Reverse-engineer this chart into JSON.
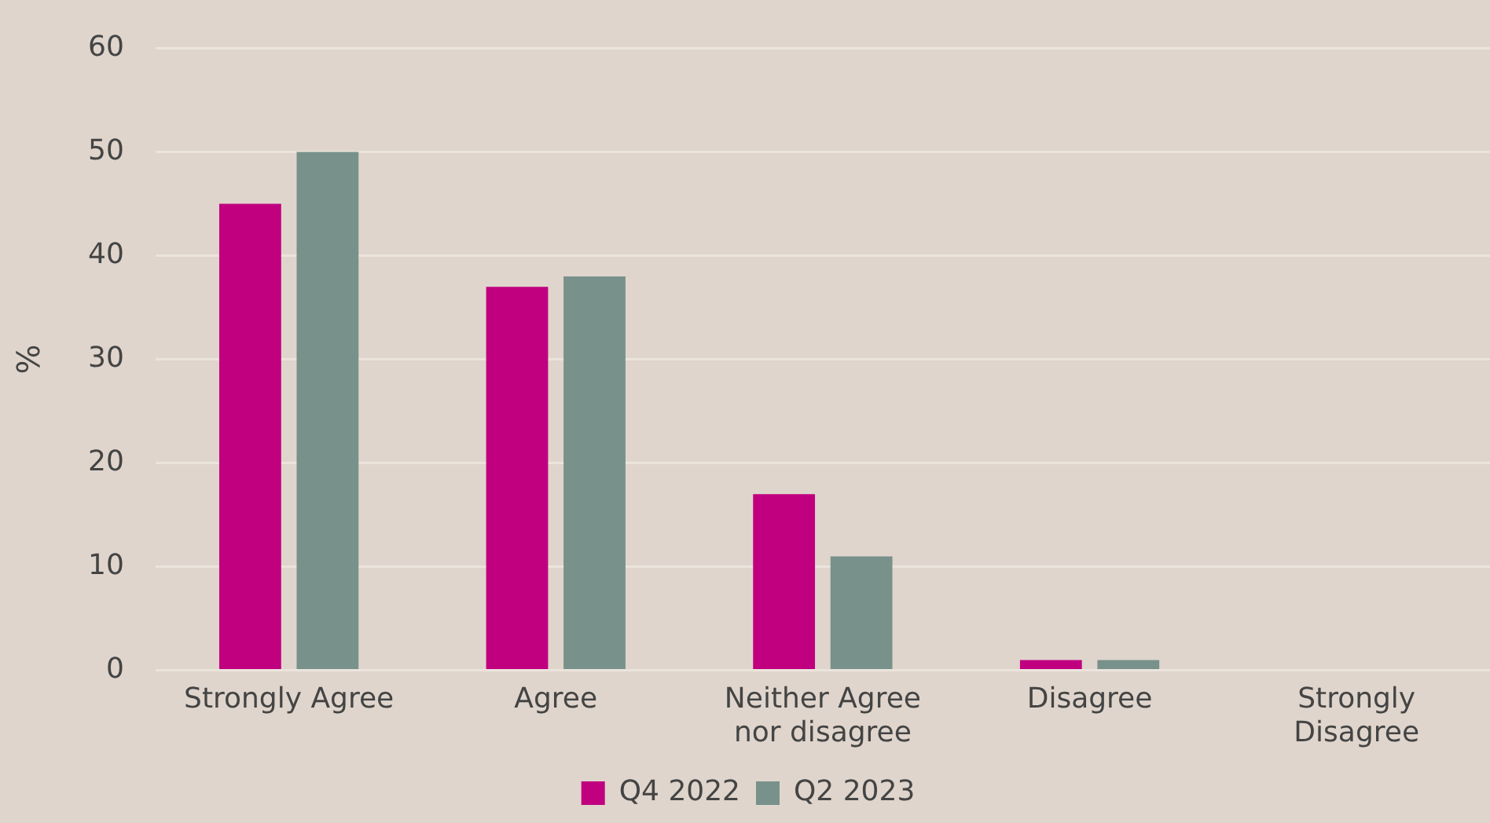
{
  "chart_data": {
    "type": "bar",
    "ylabel": "%",
    "categories": [
      "Strongly Agree",
      "Agree",
      "Neither Agree nor disagree",
      "Disagree",
      "Strongly Disagree"
    ],
    "series": [
      {
        "name": "Q4 2022",
        "color": "#c0007f",
        "values": [
          45,
          37,
          17,
          1,
          0
        ]
      },
      {
        "name": "Q2 2023",
        "color": "#78918b",
        "values": [
          50,
          38,
          11,
          1,
          0
        ]
      }
    ],
    "ylim": [
      0,
      60
    ],
    "yticks": [
      0,
      10,
      20,
      30,
      40,
      50,
      60
    ],
    "grid": "y",
    "legend": "bottom"
  }
}
